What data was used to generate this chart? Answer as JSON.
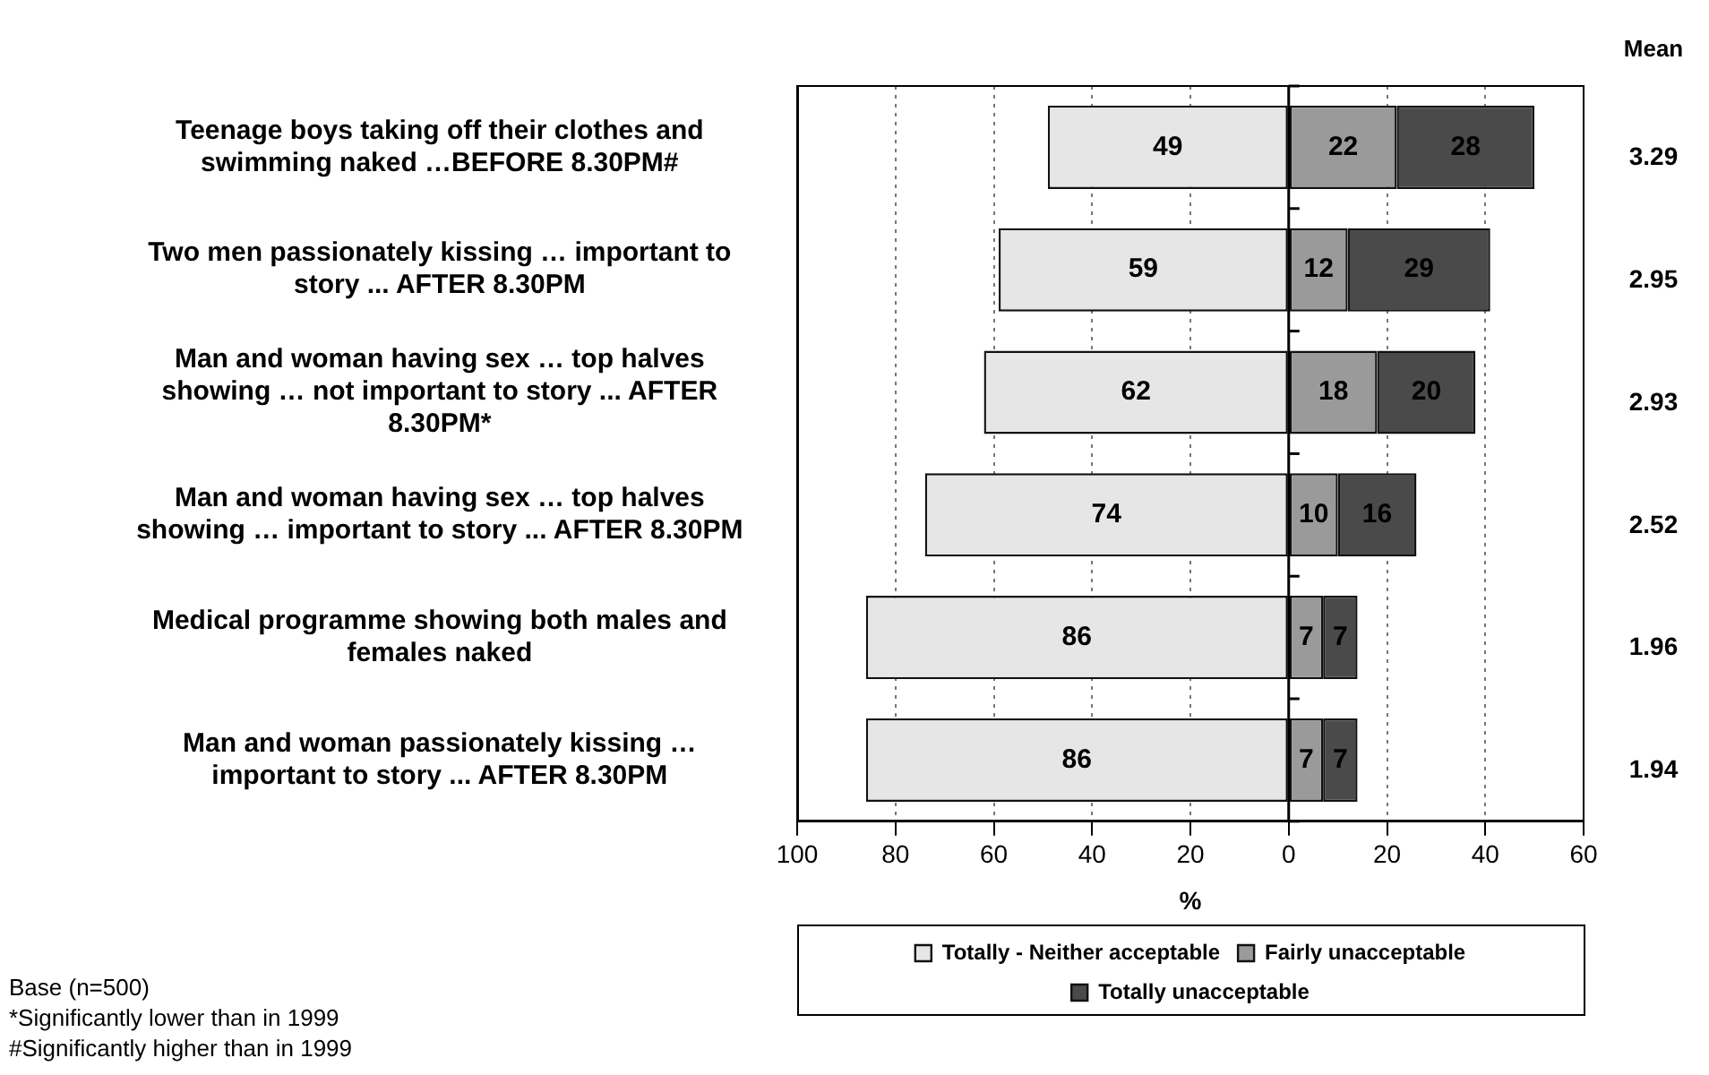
{
  "chart_data": {
    "type": "bar",
    "orientation": "horizontal",
    "categories": [
      "Teenage boys taking off their clothes and swimming naked …BEFORE 8.30PM#",
      "Two men passionately kissing … important to story ... AFTER 8.30PM",
      "Man and woman having sex … top halves showing … not important to story ... AFTER 8.30PM*",
      "Man and woman having sex … top halves showing … important to story ... AFTER 8.30PM",
      "Medical programme showing both males and females naked",
      "Man and woman passionately kissing … important to story ... AFTER 8.30PM"
    ],
    "series": [
      {
        "name": "Totally - Neither acceptable",
        "color": "#e6e6e6",
        "base": [
          -49,
          -59,
          -62,
          -74,
          -86,
          -86
        ],
        "values": [
          49,
          59,
          62,
          74,
          86,
          86
        ],
        "value_labels": [
          "49",
          "59",
          "62",
          "74",
          "86",
          "86"
        ]
      },
      {
        "name": "Fairly unacceptable",
        "color": "#9a9a9a",
        "base": [
          0,
          0,
          0,
          0,
          0,
          0
        ],
        "values": [
          22,
          12,
          18,
          10,
          7,
          7
        ],
        "value_labels": [
          "22",
          "12",
          "18",
          "10",
          "7",
          "7"
        ]
      },
      {
        "name": "Totally unacceptable",
        "color": "#4a4a4a",
        "base": [
          22,
          12,
          18,
          10,
          7,
          7
        ],
        "values": [
          28,
          29,
          20,
          16,
          7,
          7
        ],
        "value_labels": [
          "28",
          "29",
          "20",
          "16",
          "7",
          "7"
        ]
      }
    ],
    "xlabel": "%",
    "y2label": "Mean",
    "xlim": [
      -100,
      60
    ],
    "xticks": [
      {
        "value": -100,
        "label": "100"
      },
      {
        "value": -80,
        "label": "80"
      },
      {
        "value": -60,
        "label": "60"
      },
      {
        "value": -40,
        "label": "40"
      },
      {
        "value": -20,
        "label": "20"
      },
      0,
      20,
      40,
      60
    ],
    "grid": "x",
    "legend": "bottom",
    "annotations": [
      "3.29",
      "2.95",
      "2.93",
      "2.52",
      "1.96",
      "1.94",
      "Base (n=500)",
      "*Significantly lower than in 1999",
      "#Significantly higher than in 1999"
    ]
  }
}
